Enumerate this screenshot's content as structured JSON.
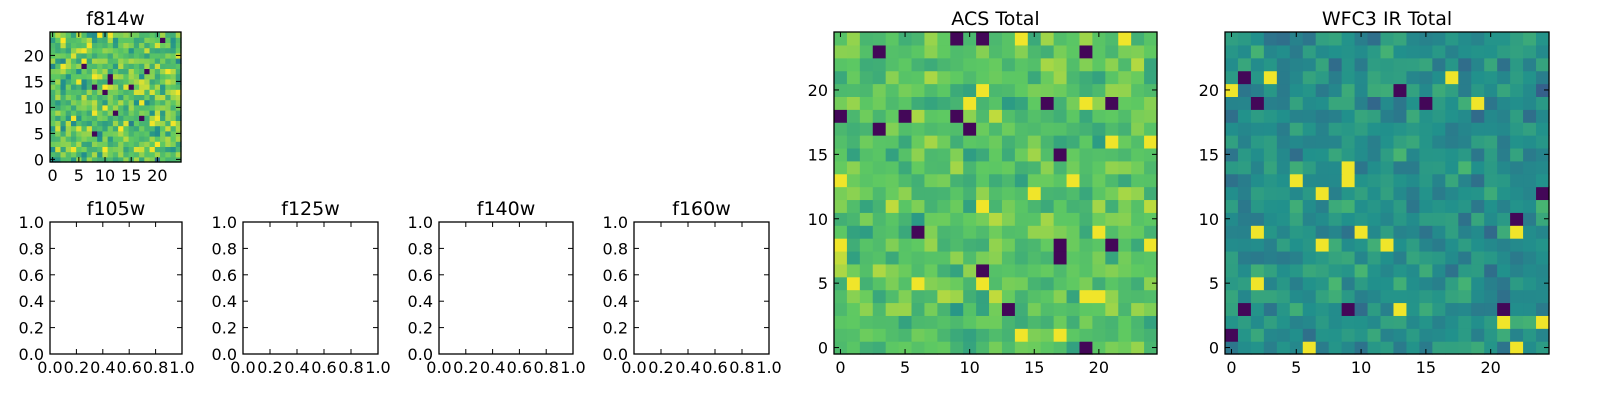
{
  "figure": {
    "colormap": [
      "#440154",
      "#3b528b",
      "#21918c",
      "#5ec962",
      "#fde725"
    ]
  },
  "chart_data": [
    {
      "id": "f814w",
      "type": "heatmap",
      "title": "f814w",
      "shape": [
        25,
        25
      ],
      "xlim": [
        -0.5,
        24.5
      ],
      "ylim": [
        -0.5,
        24.5
      ],
      "xticks": [
        0,
        5,
        10,
        15,
        20
      ],
      "yticks": [
        0,
        5,
        10,
        15,
        20
      ],
      "xticklabels": [
        "0",
        "5",
        "10",
        "15",
        "20"
      ],
      "yticklabels": [
        "0",
        "5",
        "10",
        "15",
        "20"
      ],
      "value_range": [
        0,
        1
      ],
      "seed": 11,
      "contrast": 0.9,
      "bias": 0.72
    },
    {
      "id": "f105w",
      "type": "empty",
      "title": "f105w",
      "xlim": [
        0,
        1
      ],
      "ylim": [
        0,
        1
      ],
      "xticks": [
        0,
        0.2,
        0.4,
        0.6,
        0.8,
        1.0
      ],
      "yticks": [
        0,
        0.2,
        0.4,
        0.6,
        0.8,
        1.0
      ],
      "xticklabels": [
        "0.0",
        "0.2",
        "0.4",
        "0.6",
        "0.8",
        "1.0"
      ],
      "yticklabels": [
        "0.0",
        "0.2",
        "0.4",
        "0.6",
        "0.8",
        "1.0"
      ]
    },
    {
      "id": "f125w",
      "type": "empty",
      "title": "f125w",
      "xlim": [
        0,
        1
      ],
      "ylim": [
        0,
        1
      ],
      "xticks": [
        0,
        0.2,
        0.4,
        0.6,
        0.8,
        1.0
      ],
      "yticks": [
        0,
        0.2,
        0.4,
        0.6,
        0.8,
        1.0
      ],
      "xticklabels": [
        "0.0",
        "0.2",
        "0.4",
        "0.6",
        "0.8",
        "1.0"
      ],
      "yticklabels": [
        "0.0",
        "0.2",
        "0.4",
        "0.6",
        "0.8",
        "1.0"
      ]
    },
    {
      "id": "f140w",
      "type": "empty",
      "title": "f140w",
      "xlim": [
        0,
        1
      ],
      "ylim": [
        0,
        1
      ],
      "xticks": [
        0,
        0.2,
        0.4,
        0.6,
        0.8,
        1.0
      ],
      "yticks": [
        0,
        0.2,
        0.4,
        0.6,
        0.8,
        1.0
      ],
      "xticklabels": [
        "0.0",
        "0.2",
        "0.4",
        "0.6",
        "0.8",
        "1.0"
      ],
      "yticklabels": [
        "0.0",
        "0.2",
        "0.4",
        "0.6",
        "0.8",
        "1.0"
      ]
    },
    {
      "id": "f160w",
      "type": "empty",
      "title": "f160w",
      "xlim": [
        0,
        1
      ],
      "ylim": [
        0,
        1
      ],
      "xticks": [
        0,
        0.2,
        0.4,
        0.6,
        0.8,
        1.0
      ],
      "yticks": [
        0,
        0.2,
        0.4,
        0.6,
        0.8,
        1.0
      ],
      "xticklabels": [
        "0.0",
        "0.2",
        "0.4",
        "0.6",
        "0.8",
        "1.0"
      ],
      "yticklabels": [
        "0.0",
        "0.2",
        "0.4",
        "0.6",
        "0.8",
        "1.0"
      ]
    },
    {
      "id": "acs-total",
      "type": "heatmap",
      "title": "ACS Total",
      "shape": [
        25,
        25
      ],
      "xlim": [
        -0.5,
        24.5
      ],
      "ylim": [
        -0.5,
        24.5
      ],
      "xticks": [
        0,
        5,
        10,
        15,
        20
      ],
      "yticks": [
        0,
        5,
        10,
        15,
        20
      ],
      "xticklabels": [
        "0",
        "5",
        "10",
        "15",
        "20"
      ],
      "yticklabels": [
        "0",
        "5",
        "10",
        "15",
        "20"
      ],
      "value_range": [
        0,
        1
      ],
      "seed": 23,
      "contrast": 0.55,
      "bias": 0.72
    },
    {
      "id": "wfc3-ir-total",
      "type": "heatmap",
      "title": "WFC3 IR Total",
      "shape": [
        25,
        25
      ],
      "xlim": [
        -0.5,
        24.5
      ],
      "ylim": [
        -0.5,
        24.5
      ],
      "xticks": [
        0,
        5,
        10,
        15,
        20
      ],
      "yticks": [
        0,
        5,
        10,
        15,
        20
      ],
      "xticklabels": [
        "0",
        "5",
        "10",
        "15",
        "20"
      ],
      "yticklabels": [
        "0",
        "5",
        "10",
        "15",
        "20"
      ],
      "value_range": [
        0,
        1
      ],
      "seed": 37,
      "contrast": 0.5,
      "bias": 0.5
    }
  ]
}
